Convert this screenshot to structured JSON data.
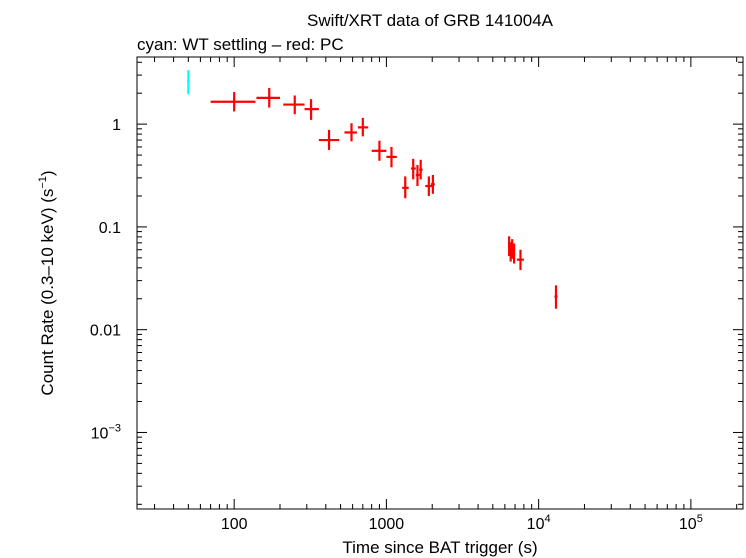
{
  "chart_data": {
    "type": "scatter",
    "title": "Swift/XRT data of GRB 141004A",
    "subtitle": "cyan: WT settling – red: PC",
    "xlabel": "Time since BAT trigger (s)",
    "ylabel_main": "Count Rate (0.3–10 keV) (s",
    "ylabel_sup": "−1",
    "ylabel_close": ")",
    "x_scale": "log",
    "y_scale": "log",
    "xlim": [
      23,
      220000
    ],
    "ylim": [
      0.00018,
      4.5
    ],
    "x_ticks": [
      {
        "value": 100,
        "base": "100",
        "exp": ""
      },
      {
        "value": 1000,
        "base": "1000",
        "exp": ""
      },
      {
        "value": 10000,
        "base": "10",
        "exp": "4"
      },
      {
        "value": 100000,
        "base": "10",
        "exp": "5"
      }
    ],
    "y_ticks": [
      {
        "value": 1,
        "base": "1",
        "exp": ""
      },
      {
        "value": 0.1,
        "base": "0.1",
        "exp": ""
      },
      {
        "value": 0.01,
        "base": "0.01",
        "exp": ""
      },
      {
        "value": 0.001,
        "base": "10",
        "exp": "−3"
      }
    ],
    "grid": false,
    "series": [
      {
        "color": "#00ffff",
        "points": [
          {
            "x": 50,
            "xlo": 49,
            "xhi": 51,
            "y": 2.6,
            "ylo": 1.95,
            "yhi": 3.35
          }
        ]
      },
      {
        "color": "#ff0000",
        "points": [
          {
            "x": 100,
            "xlo": 70,
            "xhi": 138,
            "y": 1.65,
            "ylo": 1.33,
            "yhi": 2.05
          },
          {
            "x": 170,
            "xlo": 140,
            "xhi": 200,
            "y": 1.8,
            "ylo": 1.45,
            "yhi": 2.25
          },
          {
            "x": 250,
            "xlo": 210,
            "xhi": 290,
            "y": 1.55,
            "ylo": 1.25,
            "yhi": 1.9
          },
          {
            "x": 320,
            "xlo": 290,
            "xhi": 360,
            "y": 1.4,
            "ylo": 1.1,
            "yhi": 1.75
          },
          {
            "x": 420,
            "xlo": 360,
            "xhi": 490,
            "y": 0.7,
            "ylo": 0.56,
            "yhi": 0.88
          },
          {
            "x": 590,
            "xlo": 530,
            "xhi": 640,
            "y": 0.83,
            "ylo": 0.68,
            "yhi": 1.02
          },
          {
            "x": 700,
            "xlo": 650,
            "xhi": 760,
            "y": 0.93,
            "ylo": 0.76,
            "yhi": 1.15
          },
          {
            "x": 900,
            "xlo": 800,
            "xhi": 1000,
            "y": 0.55,
            "ylo": 0.44,
            "yhi": 0.69
          },
          {
            "x": 1080,
            "xlo": 1000,
            "xhi": 1170,
            "y": 0.48,
            "ylo": 0.38,
            "yhi": 0.6
          },
          {
            "x": 1330,
            "xlo": 1270,
            "xhi": 1400,
            "y": 0.24,
            "ylo": 0.19,
            "yhi": 0.31
          },
          {
            "x": 1500,
            "xlo": 1450,
            "xhi": 1560,
            "y": 0.37,
            "ylo": 0.29,
            "yhi": 0.46
          },
          {
            "x": 1600,
            "xlo": 1560,
            "xhi": 1650,
            "y": 0.32,
            "ylo": 0.25,
            "yhi": 0.4
          },
          {
            "x": 1680,
            "xlo": 1640,
            "xhi": 1730,
            "y": 0.36,
            "ylo": 0.29,
            "yhi": 0.45
          },
          {
            "x": 1900,
            "xlo": 1800,
            "xhi": 2000,
            "y": 0.25,
            "ylo": 0.2,
            "yhi": 0.31
          },
          {
            "x": 2020,
            "xlo": 1960,
            "xhi": 2080,
            "y": 0.26,
            "ylo": 0.21,
            "yhi": 0.32
          },
          {
            "x": 6400,
            "xlo": 6300,
            "xhi": 6500,
            "y": 0.065,
            "ylo": 0.052,
            "yhi": 0.081
          },
          {
            "x": 6550,
            "xlo": 6450,
            "xhi": 6650,
            "y": 0.057,
            "ylo": 0.046,
            "yhi": 0.071
          },
          {
            "x": 6700,
            "xlo": 6600,
            "xhi": 6800,
            "y": 0.061,
            "ylo": 0.049,
            "yhi": 0.076
          },
          {
            "x": 6900,
            "xlo": 6800,
            "xhi": 7000,
            "y": 0.055,
            "ylo": 0.044,
            "yhi": 0.069
          },
          {
            "x": 7600,
            "xlo": 7200,
            "xhi": 8000,
            "y": 0.048,
            "ylo": 0.038,
            "yhi": 0.06
          },
          {
            "x": 13000,
            "xlo": 12700,
            "xhi": 13300,
            "y": 0.021,
            "ylo": 0.016,
            "yhi": 0.027
          }
        ]
      }
    ]
  }
}
